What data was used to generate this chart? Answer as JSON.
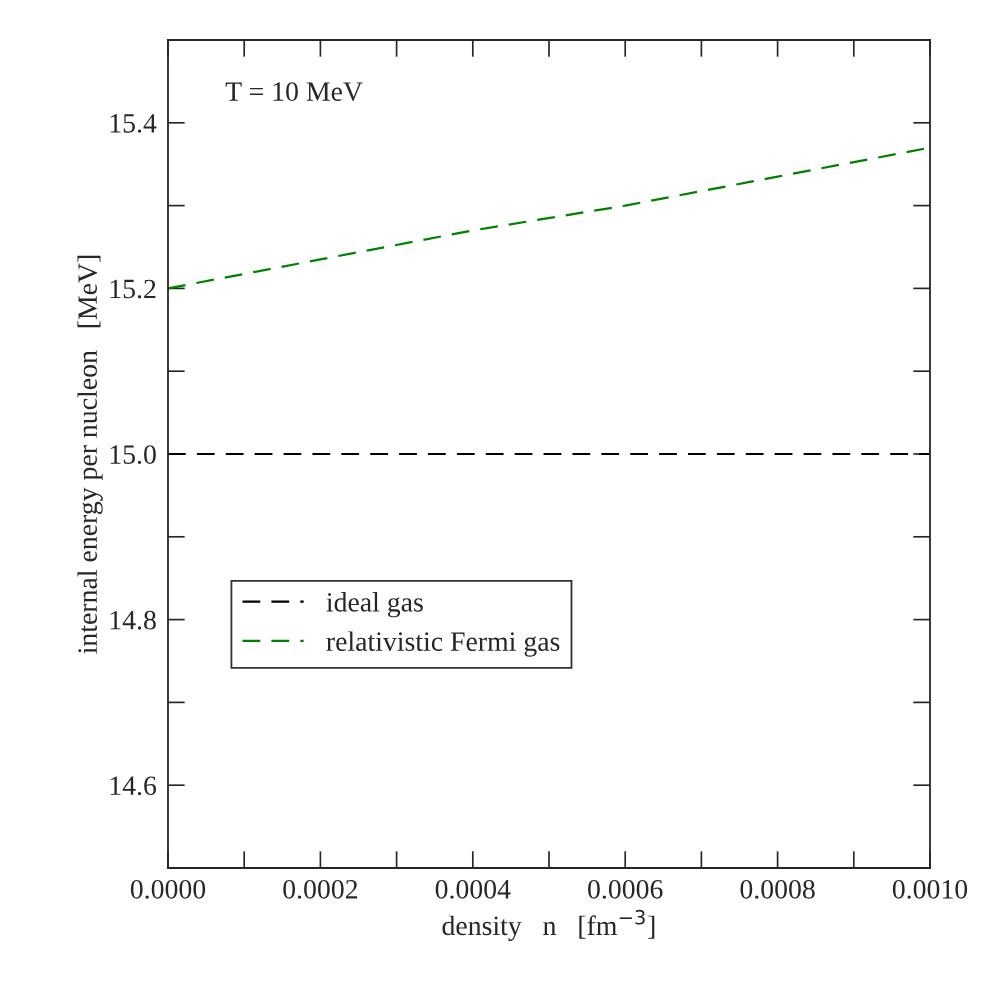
{
  "chart_data": {
    "type": "line",
    "xlabel": "density   n   [fm$^{−3}$]",
    "ylabel": "internal energy per nucleon   [MeV]",
    "annotations": [
      "T = 10 MeV"
    ],
    "x": [
      0,
      0.0002,
      0.0004,
      0.0006,
      0.0008,
      0.001
    ],
    "series": [
      {
        "name": "ideal gas",
        "color": "#000000",
        "values": [
          15.0,
          15.0,
          15.0,
          15.0,
          15.0,
          15.0
        ]
      },
      {
        "name": "relativistic Fermi gas",
        "color": "#008000",
        "values": [
          15.2,
          15.235,
          15.27,
          15.3,
          15.335,
          15.37
        ]
      }
    ],
    "line_style": "dashed",
    "marker": "none",
    "grid": false,
    "legend": "bottom left",
    "xlim": [
      0,
      0.001
    ],
    "xticks": [
      {
        "value": 0,
        "label": "0.0000"
      },
      {
        "value": 0.0002,
        "label": "0.0002"
      },
      {
        "value": 0.0004,
        "label": "0.0004"
      },
      {
        "value": 0.0006,
        "label": "0.0006"
      },
      {
        "value": 0.0008,
        "label": "0.0008"
      },
      {
        "value": 0.001,
        "label": "0.0010"
      }
    ],
    "ylim": [
      14.5,
      15.5
    ],
    "yticks": [
      {
        "value": 14.6,
        "label": "14.6"
      },
      {
        "value": 14.8,
        "label": "14.8"
      },
      {
        "value": 15.0,
        "label": "15.0"
      },
      {
        "value": 15.2,
        "label": "15.2"
      },
      {
        "value": 15.4,
        "label": "15.4"
      }
    ]
  }
}
